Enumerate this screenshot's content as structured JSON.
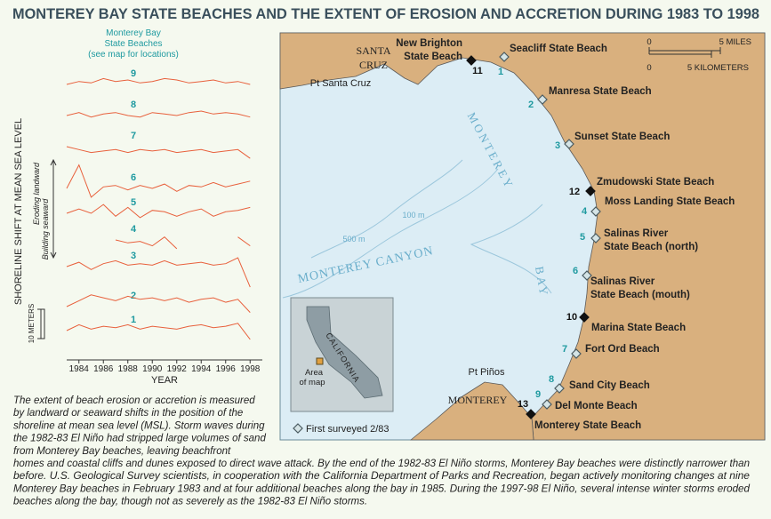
{
  "title": "MONTEREY BAY STATE BEACHES AND THE EXTENT OF EROSION AND ACCRETION DURING 1983 TO 1998",
  "panel": {
    "legend_title": [
      "Monterey Bay",
      "State Beaches",
      "(see map for locations)"
    ],
    "y_label": "SHORELINE SHIFT AT MEAN SEA LEVEL",
    "eroding": "Eroding landward",
    "building": "Building seaward",
    "scale_label": "10 METERS",
    "x_label": "YEAR",
    "xlim": [
      1983,
      1999
    ],
    "xticks": [
      1984,
      1986,
      1988,
      1990,
      1992,
      1994,
      1996,
      1998
    ],
    "x": [
      1983,
      1984,
      1985,
      1986,
      1987,
      1988,
      1989,
      1990,
      1991,
      1992,
      1993,
      1994,
      1995,
      1996,
      1997,
      1998
    ],
    "series": [
      {
        "name": "9",
        "values": [
          0,
          1,
          0.5,
          2,
          1,
          1.5,
          0.5,
          1,
          2,
          1.5,
          0.5,
          1,
          1.5,
          0.5,
          1,
          0
        ]
      },
      {
        "name": "8",
        "values": [
          0,
          1,
          -0.5,
          0.5,
          1,
          0,
          -0.5,
          1,
          0.5,
          0,
          1,
          1.5,
          0.5,
          1,
          0.5,
          -0.5
        ]
      },
      {
        "name": "7",
        "values": [
          0,
          -1,
          -2,
          -1.5,
          -1,
          -2,
          -1,
          -1.5,
          -1,
          -2,
          -1.5,
          -1,
          -2,
          -1.5,
          -1,
          -4
        ]
      },
      {
        "name": "6",
        "values": [
          0,
          8,
          -3,
          0.5,
          1,
          -0.5,
          1,
          0,
          1.5,
          -1,
          1,
          0.5,
          2,
          0.5,
          1.5,
          2.5
        ]
      },
      {
        "name": "5",
        "values": [
          0,
          1.5,
          0,
          3,
          -1,
          2,
          -1.5,
          1,
          0.5,
          -1,
          0.5,
          1.5,
          -1,
          0.5,
          1,
          2
        ]
      },
      {
        "name": "4",
        "values": [
          null,
          null,
          null,
          null,
          0,
          -1,
          -0.5,
          -2,
          1,
          -3,
          null,
          null,
          null,
          null,
          1,
          -2
        ]
      },
      {
        "name": "3",
        "values": [
          0,
          1.5,
          -1,
          1,
          2,
          0.5,
          1,
          0.5,
          2,
          0.5,
          1,
          1.5,
          0.5,
          1,
          3,
          -7
        ]
      },
      {
        "name": "2",
        "values": [
          0,
          2,
          4,
          3,
          2,
          3.5,
          2.5,
          3,
          2,
          3,
          1.5,
          2.5,
          3,
          1.5,
          2.5,
          -2
        ]
      },
      {
        "name": "1",
        "values": [
          0,
          2,
          0.5,
          1.5,
          1,
          2,
          0.5,
          1.5,
          1,
          0.5,
          1.5,
          2,
          1,
          1.5,
          2.5,
          -3
        ]
      }
    ]
  },
  "map": {
    "places": [
      "SANTA",
      "CRUZ",
      "Pt Santa Cruz",
      "MONTEREY",
      "BAY",
      "MONTEREY CANYON",
      "100 m",
      "500 m",
      "Pt Piños",
      "MONTEREY"
    ],
    "beaches": [
      {
        "id": "11",
        "name": [
          "New Brighton",
          "State Beach"
        ],
        "first_surveyed": false
      },
      {
        "id": "1",
        "name": [
          "Seacliff State Beach"
        ],
        "first_surveyed": true
      },
      {
        "id": "2",
        "name": [
          "Manresa State Beach"
        ],
        "first_surveyed": true
      },
      {
        "id": "3",
        "name": [
          "Sunset State Beach"
        ],
        "first_surveyed": true
      },
      {
        "id": "12",
        "name": [
          "Zmudowski State Beach"
        ],
        "first_surveyed": false
      },
      {
        "id": "4",
        "name": [
          "Moss Landing State Beach"
        ],
        "first_surveyed": true
      },
      {
        "id": "5",
        "name": [
          "Salinas River",
          "State Beach (north)"
        ],
        "first_surveyed": true
      },
      {
        "id": "6",
        "name": [
          "Salinas River",
          "State Beach (mouth)"
        ],
        "first_surveyed": true
      },
      {
        "id": "10",
        "name": [
          "Marina State Beach"
        ],
        "first_surveyed": false
      },
      {
        "id": "7",
        "name": [
          "Fort Ord Beach"
        ],
        "first_surveyed": true
      },
      {
        "id": "8",
        "name": [
          "Sand City Beach"
        ],
        "first_surveyed": true
      },
      {
        "id": "9",
        "name": [
          "Del Monte Beach"
        ],
        "first_surveyed": true
      },
      {
        "id": "13",
        "name": [
          "Monterey State Beach"
        ],
        "first_surveyed": false
      }
    ],
    "scale": [
      "0",
      "5 MILES",
      "0",
      "5 KILOMETERS"
    ],
    "inset": [
      "CALIFORNIA",
      "Area",
      "of map"
    ],
    "legend": "First surveyed 2/83"
  },
  "caption": [
    "The extent of beach erosion or accretion is measured",
    "by landward or seaward shifts in the position of the",
    "shoreline at mean sea level (MSL). Storm waves during",
    "the 1982-83 El Niño had stripped large volumes of sand",
    "from Monterey Bay beaches, leaving beachfront",
    "homes and coastal cliffs and dunes exposed to direct wave attack. By the end of the 1982-83 El Niño storms, Monterey Bay beaches were distinctly narrower than",
    "before. U.S. Geological Survey scientists, in cooperation with the California Department of Parks and Recreation, began actively monitoring changes at nine",
    "Monterey Bay beaches in February 1983 and at four additional beaches along the bay in 1985. During the 1997-98 El Niño, several intense winter storms eroded",
    "beaches along the bay, though not as severely as the 1982-83 El Niño storms."
  ]
}
